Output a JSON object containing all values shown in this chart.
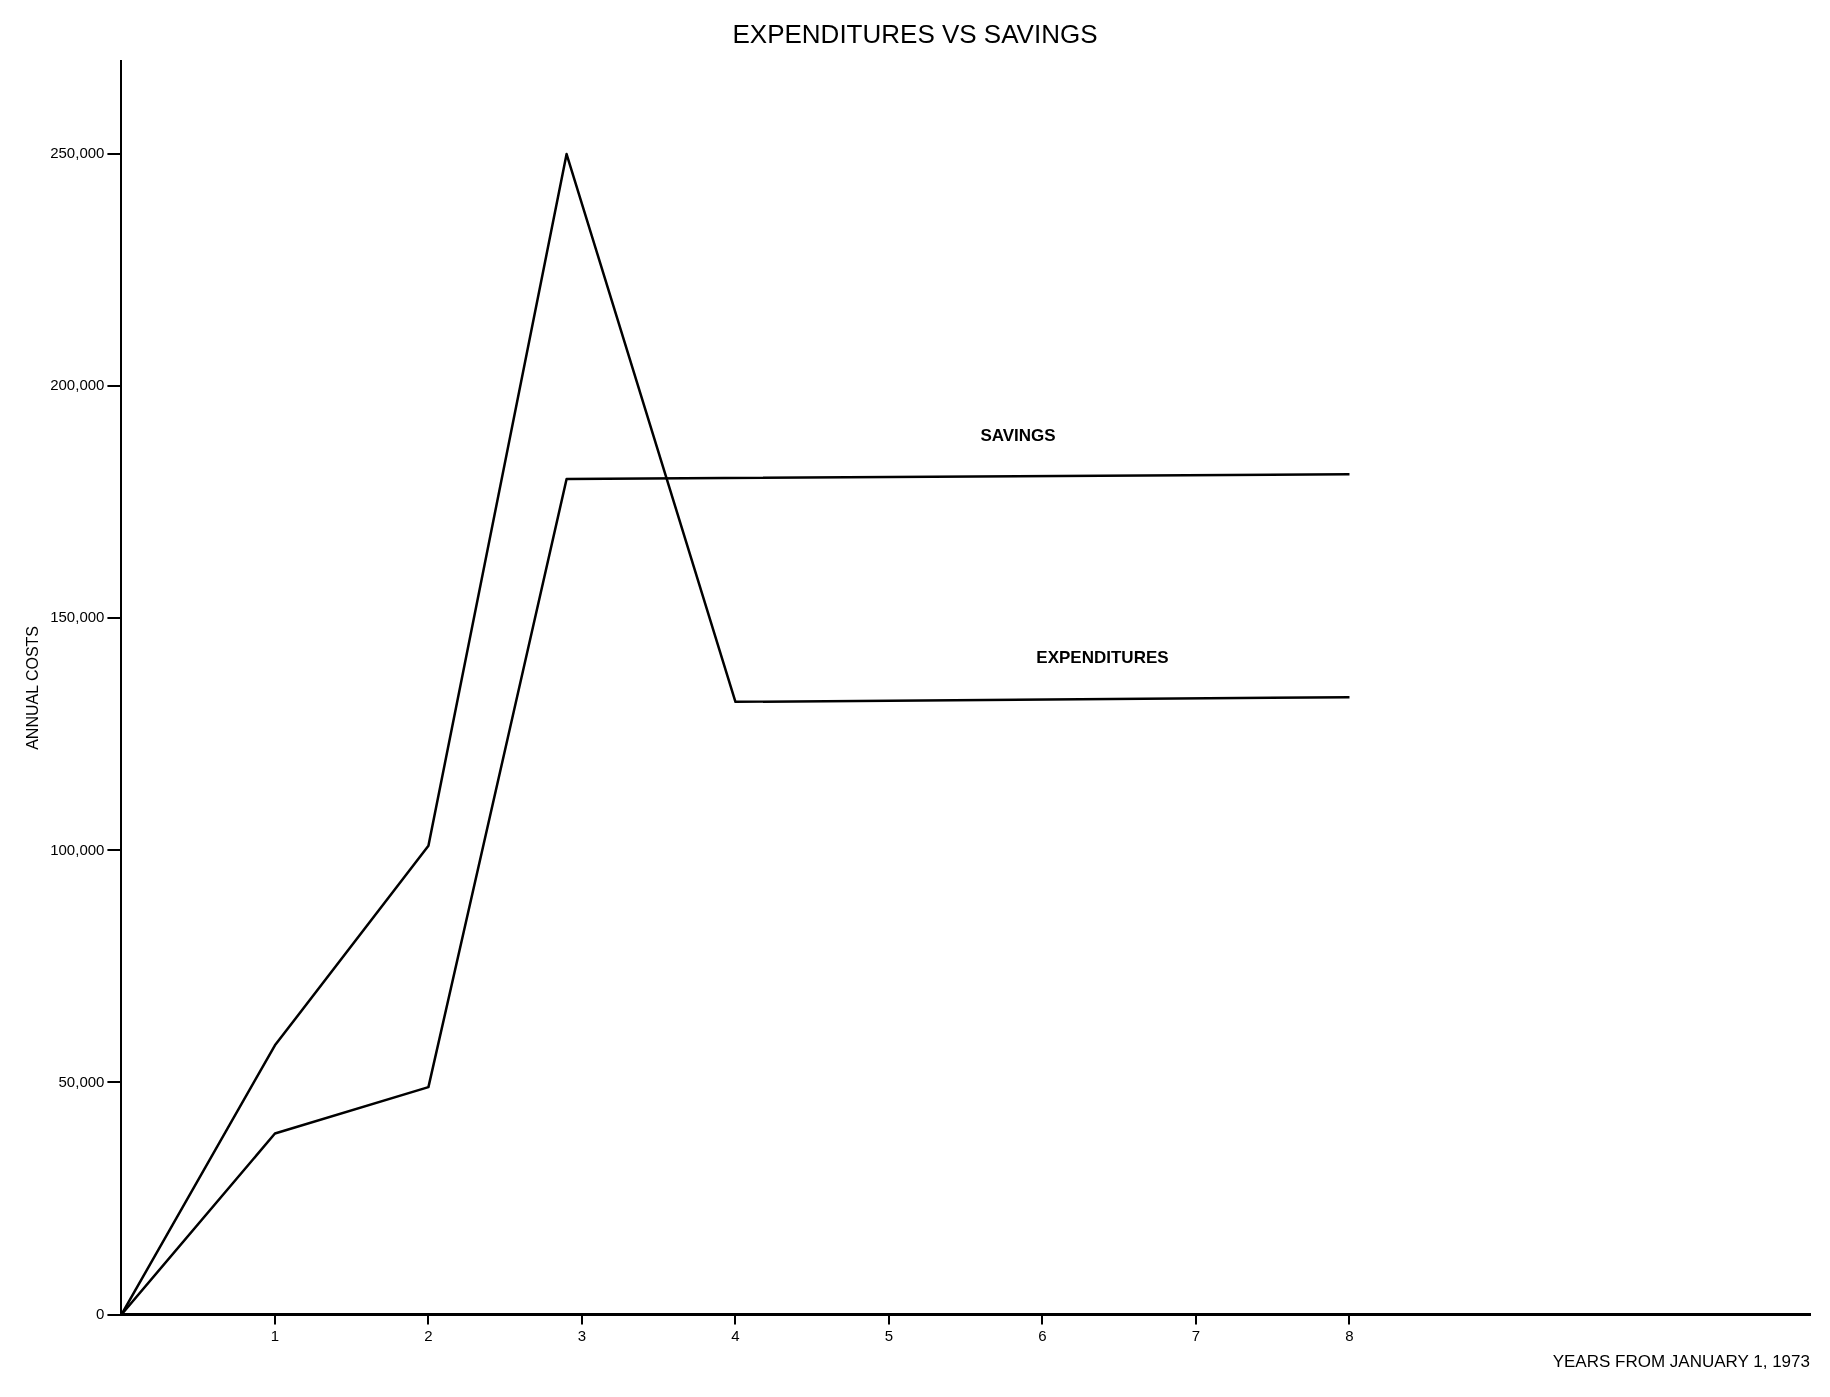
{
  "chart_data": {
    "type": "line",
    "title": "EXPENDITURES VS SAVINGS",
    "xlabel": "YEARS FROM JANUARY 1, 1973",
    "ylabel": "ANNUAL COSTS",
    "series": [
      {
        "name": "SAVINGS",
        "color": "#000000",
        "x": [
          0,
          1,
          2,
          2.9,
          8
        ],
        "values": [
          0,
          39000,
          49000,
          180000,
          181000
        ]
      },
      {
        "name": "EXPENDITURES",
        "color": "#000000",
        "x": [
          0,
          1,
          2,
          2.9,
          4,
          8
        ],
        "values": [
          0,
          58000,
          101000,
          250000,
          132000,
          133000
        ]
      }
    ],
    "xlim": [
      0,
      11
    ],
    "xticks": [
      1,
      2,
      3,
      4,
      5,
      6,
      7,
      8
    ],
    "ylim": [
      0,
      270000
    ],
    "yticks": [
      {
        "value": 0,
        "label": "0"
      },
      {
        "value": 50000,
        "label": "50,000"
      },
      {
        "value": 100000,
        "label": "100,000"
      },
      {
        "value": 150000,
        "label": "150,000"
      },
      {
        "value": 200000,
        "label": "200,000"
      },
      {
        "value": 250000,
        "label": "250,000"
      }
    ],
    "grid": false,
    "legend": false,
    "marker": "none",
    "line_style": "solid"
  }
}
